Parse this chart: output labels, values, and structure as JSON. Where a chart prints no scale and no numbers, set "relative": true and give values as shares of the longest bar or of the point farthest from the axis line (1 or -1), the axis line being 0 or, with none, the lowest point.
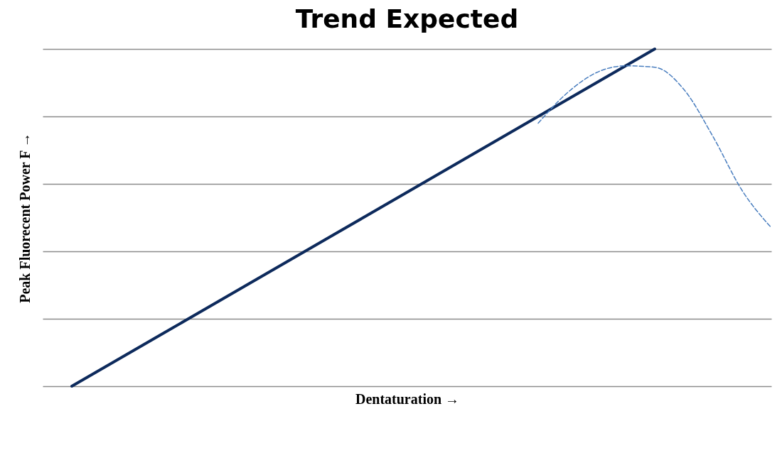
{
  "chart_data": {
    "type": "line",
    "title": "Trend Expected",
    "xlabel": "Dentaturation →",
    "ylabel": "Peak Fluorecent Power F →",
    "relative": true,
    "grid": "y",
    "marker": "none",
    "categories": [
      null,
      null,
      null,
      null,
      null,
      null,
      null,
      null,
      null,
      null,
      null,
      null,
      null,
      null,
      null,
      null,
      null,
      null,
      null,
      null,
      null,
      null,
      null,
      null,
      null
    ],
    "series": [
      {
        "color": "#0d2a5c",
        "line_style": "solid",
        "values": [
          0,
          0.05,
          0.1,
          0.15,
          0.2,
          0.25,
          0.3,
          0.35,
          0.4,
          0.45,
          0.5,
          0.55,
          0.6,
          0.65,
          0.7,
          0.75,
          0.8,
          0.85,
          0.9,
          0.95,
          1,
          null,
          null,
          null,
          null
        ]
      },
      {
        "color": "#4a7ebf",
        "line_style": "dashed",
        "values": [
          null,
          null,
          null,
          null,
          null,
          null,
          null,
          null,
          null,
          null,
          null,
          null,
          null,
          null,
          null,
          null,
          0.78,
          0.87,
          0.93,
          0.95,
          0.946,
          0.88,
          0.74,
          0.58,
          0.47
        ]
      }
    ]
  }
}
